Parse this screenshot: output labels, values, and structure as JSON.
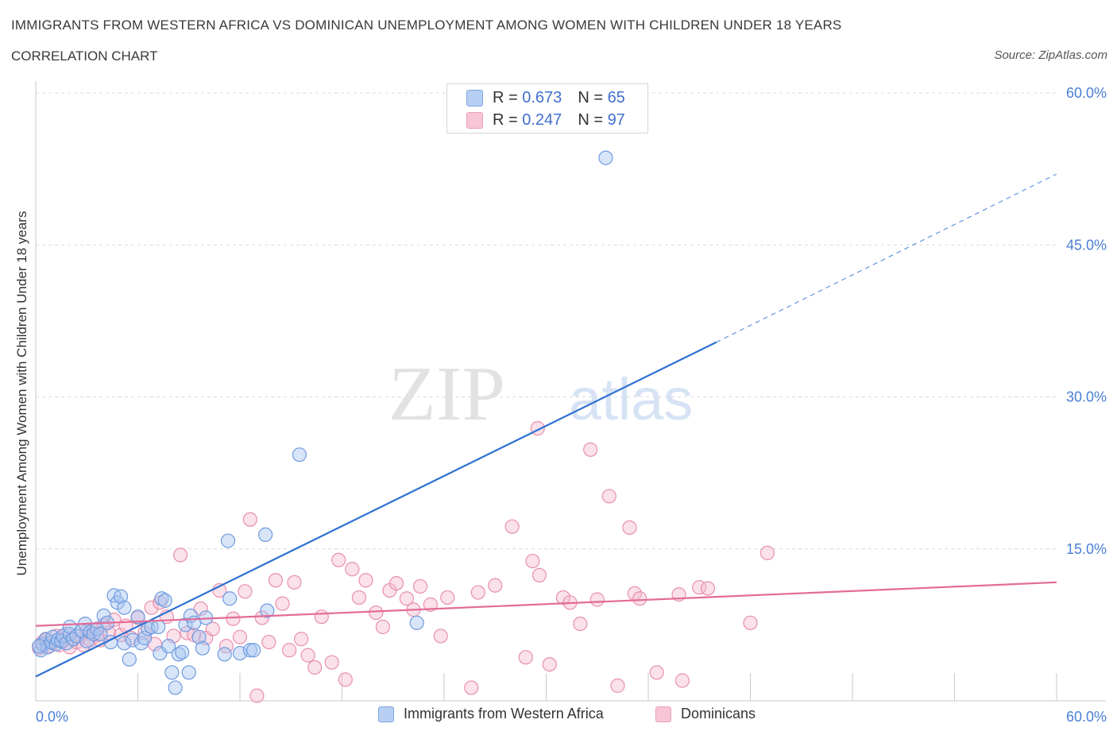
{
  "header": {
    "title": "IMMIGRANTS FROM WESTERN AFRICA VS DOMINICAN UNEMPLOYMENT AMONG WOMEN WITH CHILDREN UNDER 18 YEARS",
    "subtitle": "CORRELATION CHART",
    "source": "Source: ZipAtlas.com"
  },
  "watermark": {
    "zip": "ZIP",
    "atlas": "atlas"
  },
  "stats": {
    "blue": {
      "r_label": "R = ",
      "r_value": "0.673",
      "n_label": "N = ",
      "n_value": "65"
    },
    "pink": {
      "r_label": "R = ",
      "r_value": "0.247",
      "n_label": "N = ",
      "n_value": "97"
    }
  },
  "legend": {
    "blue_label": "Immigrants from Western Africa",
    "pink_label": "Dominicans"
  },
  "chart_data": {
    "type": "scatter",
    "ylabel": "Unemployment Among Women with Children Under 18 years",
    "xlim": [
      0,
      60
    ],
    "ylim": [
      0,
      60
    ],
    "x_tick_labels": [
      {
        "value": 0,
        "label": "0.0%"
      },
      {
        "value": 60,
        "label": "60.0%"
      }
    ],
    "y_tick_labels": [
      {
        "value": 15,
        "label": "15.0%"
      },
      {
        "value": 30,
        "label": "30.0%"
      },
      {
        "value": 45,
        "label": "45.0%"
      },
      {
        "value": 60,
        "label": "60.0%"
      }
    ],
    "grid": true,
    "colors": {
      "blue_fill": "#a9c5f0",
      "blue_edge": "#6f9be0",
      "blue_line": "#2f72d1",
      "pink_fill": "#f5bdd0",
      "pink_edge": "#e98fae",
      "pink_line": "#e36b96",
      "tick_text": "#4a7fd4"
    },
    "series": [
      {
        "name": "Immigrants from Western Africa",
        "color": "#6f9be0",
        "points": [
          [
            0.3,
            5.0
          ],
          [
            0.4,
            5.6
          ],
          [
            0.6,
            6.1
          ],
          [
            0.7,
            5.3
          ],
          [
            0.9,
            5.8
          ],
          [
            1.0,
            6.3
          ],
          [
            1.2,
            5.6
          ],
          [
            1.3,
            6.0
          ],
          [
            1.5,
            5.9
          ],
          [
            1.6,
            6.4
          ],
          [
            1.8,
            5.7
          ],
          [
            2.0,
            6.6
          ],
          [
            2.0,
            7.3
          ],
          [
            2.2,
            6.1
          ],
          [
            2.4,
            6.4
          ],
          [
            2.7,
            6.9
          ],
          [
            2.9,
            7.6
          ],
          [
            3.0,
            5.9
          ],
          [
            3.2,
            6.8
          ],
          [
            3.4,
            6.6
          ],
          [
            3.6,
            7.1
          ],
          [
            3.8,
            6.6
          ],
          [
            4.0,
            8.4
          ],
          [
            4.2,
            7.7
          ],
          [
            4.4,
            5.8
          ],
          [
            4.6,
            10.4
          ],
          [
            4.8,
            9.7
          ],
          [
            5.0,
            10.3
          ],
          [
            5.2,
            9.2
          ],
          [
            5.2,
            5.7
          ],
          [
            5.5,
            4.1
          ],
          [
            5.7,
            6.0
          ],
          [
            6.0,
            8.3
          ],
          [
            6.2,
            5.7
          ],
          [
            6.4,
            6.2
          ],
          [
            6.6,
            7.1
          ],
          [
            6.8,
            7.3
          ],
          [
            7.2,
            7.3
          ],
          [
            7.3,
            4.7
          ],
          [
            7.4,
            10.1
          ],
          [
            7.6,
            9.9
          ],
          [
            7.8,
            5.4
          ],
          [
            8.0,
            2.8
          ],
          [
            8.2,
            1.3
          ],
          [
            8.4,
            4.6
          ],
          [
            8.6,
            4.8
          ],
          [
            8.8,
            7.5
          ],
          [
            9.0,
            2.8
          ],
          [
            9.1,
            8.4
          ],
          [
            9.3,
            7.7
          ],
          [
            9.6,
            6.3
          ],
          [
            9.8,
            5.2
          ],
          [
            10.0,
            8.2
          ],
          [
            11.1,
            4.6
          ],
          [
            11.3,
            15.8
          ],
          [
            11.4,
            10.1
          ],
          [
            12.0,
            4.7
          ],
          [
            12.6,
            5.0
          ],
          [
            12.8,
            5.0
          ],
          [
            13.5,
            16.4
          ],
          [
            13.6,
            8.9
          ],
          [
            15.5,
            24.3
          ],
          [
            22.4,
            7.7
          ],
          [
            33.5,
            53.6
          ],
          [
            0.2,
            5.4
          ]
        ]
      },
      {
        "name": "Dominicans",
        "color": "#e98fae",
        "points": [
          [
            0.2,
            5.2
          ],
          [
            0.4,
            5.8
          ],
          [
            0.6,
            6.0
          ],
          [
            0.8,
            5.4
          ],
          [
            1.0,
            5.7
          ],
          [
            1.2,
            6.4
          ],
          [
            1.4,
            5.5
          ],
          [
            1.6,
            5.9
          ],
          [
            1.8,
            6.6
          ],
          [
            2.0,
            5.3
          ],
          [
            2.2,
            6.1
          ],
          [
            2.4,
            5.8
          ],
          [
            2.6,
            6.4
          ],
          [
            2.8,
            5.5
          ],
          [
            3.0,
            6.9
          ],
          [
            3.2,
            6.0
          ],
          [
            3.4,
            7.0
          ],
          [
            3.6,
            6.5
          ],
          [
            3.8,
            6.0
          ],
          [
            4.0,
            7.5
          ],
          [
            4.3,
            6.7
          ],
          [
            4.6,
            8.0
          ],
          [
            5.0,
            6.5
          ],
          [
            5.3,
            7.4
          ],
          [
            5.6,
            6.2
          ],
          [
            6.0,
            8.2
          ],
          [
            6.4,
            6.7
          ],
          [
            6.8,
            9.2
          ],
          [
            7.0,
            5.6
          ],
          [
            7.3,
            9.7
          ],
          [
            7.7,
            8.3
          ],
          [
            8.1,
            6.4
          ],
          [
            8.5,
            14.4
          ],
          [
            8.9,
            6.7
          ],
          [
            9.3,
            6.5
          ],
          [
            9.7,
            9.1
          ],
          [
            10.0,
            6.2
          ],
          [
            10.4,
            7.1
          ],
          [
            10.8,
            10.9
          ],
          [
            11.2,
            5.4
          ],
          [
            11.6,
            8.1
          ],
          [
            12.0,
            6.3
          ],
          [
            12.3,
            10.8
          ],
          [
            12.6,
            17.9
          ],
          [
            13.0,
            0.5
          ],
          [
            13.3,
            8.2
          ],
          [
            13.7,
            5.8
          ],
          [
            14.1,
            11.9
          ],
          [
            14.5,
            9.6
          ],
          [
            14.9,
            5.0
          ],
          [
            15.2,
            11.7
          ],
          [
            15.6,
            6.1
          ],
          [
            16.0,
            4.5
          ],
          [
            16.4,
            3.3
          ],
          [
            16.8,
            8.3
          ],
          [
            17.4,
            3.8
          ],
          [
            17.8,
            13.9
          ],
          [
            18.2,
            2.1
          ],
          [
            18.6,
            13.0
          ],
          [
            19.0,
            10.2
          ],
          [
            19.4,
            11.9
          ],
          [
            20.0,
            8.7
          ],
          [
            20.4,
            7.3
          ],
          [
            20.8,
            10.9
          ],
          [
            21.2,
            11.6
          ],
          [
            21.8,
            10.1
          ],
          [
            22.2,
            9.0
          ],
          [
            22.6,
            11.3
          ],
          [
            23.2,
            9.5
          ],
          [
            23.8,
            6.4
          ],
          [
            24.2,
            10.2
          ],
          [
            25.6,
            1.3
          ],
          [
            26.0,
            10.7
          ],
          [
            27.0,
            11.4
          ],
          [
            28.0,
            17.2
          ],
          [
            28.8,
            4.3
          ],
          [
            29.2,
            13.8
          ],
          [
            29.6,
            12.4
          ],
          [
            30.2,
            3.6
          ],
          [
            31.0,
            10.2
          ],
          [
            31.4,
            9.7
          ],
          [
            32.0,
            7.6
          ],
          [
            32.6,
            24.8
          ],
          [
            33.0,
            10.0
          ],
          [
            33.7,
            20.2
          ],
          [
            34.2,
            1.5
          ],
          [
            34.9,
            17.1
          ],
          [
            35.2,
            10.6
          ],
          [
            35.5,
            10.1
          ],
          [
            36.5,
            2.8
          ],
          [
            37.8,
            10.5
          ],
          [
            38.0,
            2.0
          ],
          [
            39.0,
            11.2
          ],
          [
            39.5,
            11.1
          ],
          [
            42.0,
            7.7
          ],
          [
            43.0,
            14.6
          ],
          [
            29.5,
            26.9
          ]
        ]
      }
    ],
    "trend_lines": [
      {
        "series": "Immigrants from Western Africa",
        "x0": 0,
        "y0": 2.4,
        "x1": 40,
        "y1": 35.4,
        "dashed_to_x": 60,
        "dashed_to_y": 52.0
      },
      {
        "series": "Dominicans",
        "x0": 0,
        "y0": 7.4,
        "x1": 60,
        "y1": 11.7
      }
    ]
  }
}
